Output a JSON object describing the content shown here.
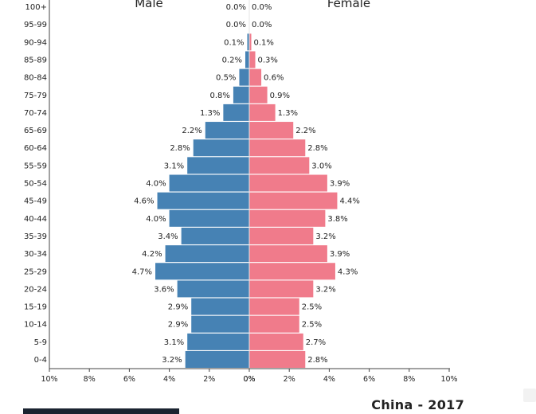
{
  "chart_data": {
    "type": "bar",
    "title": "China - 2017",
    "left_label": "Male",
    "right_label": "Female",
    "categories": [
      "0-4",
      "5-9",
      "10-14",
      "15-19",
      "20-24",
      "25-29",
      "30-34",
      "35-39",
      "40-44",
      "45-49",
      "50-54",
      "55-59",
      "60-64",
      "65-69",
      "70-74",
      "75-79",
      "80-84",
      "85-89",
      "90-94",
      "95-99",
      "100+"
    ],
    "series": [
      {
        "name": "Male",
        "color": "#4682b4",
        "values": [
          3.2,
          3.1,
          2.9,
          2.9,
          3.6,
          4.7,
          4.2,
          3.4,
          4.0,
          4.6,
          4.0,
          3.1,
          2.8,
          2.2,
          1.3,
          0.8,
          0.5,
          0.2,
          0.1,
          0.0,
          0.0
        ],
        "labels": [
          "3.2%",
          "3.1%",
          "2.9%",
          "2.9%",
          "3.6%",
          "4.7%",
          "4.2%",
          "3.4%",
          "4.0%",
          "4.6%",
          "4.0%",
          "3.1%",
          "2.8%",
          "2.2%",
          "1.3%",
          "0.8%",
          "0.5%",
          "0.2%",
          "0.1%",
          "0.0%",
          "0.0%"
        ]
      },
      {
        "name": "Female",
        "color": "#f07b8b",
        "values": [
          2.8,
          2.7,
          2.5,
          2.5,
          3.2,
          4.3,
          3.9,
          3.2,
          3.8,
          4.4,
          3.9,
          3.0,
          2.8,
          2.2,
          1.3,
          0.9,
          0.6,
          0.3,
          0.1,
          0.0,
          0.0
        ],
        "labels": [
          "2.8%",
          "2.7%",
          "2.5%",
          "2.5%",
          "3.2%",
          "4.3%",
          "3.9%",
          "3.2%",
          "3.8%",
          "4.4%",
          "3.9%",
          "3.0%",
          "2.8%",
          "2.2%",
          "1.3%",
          "0.9%",
          "0.6%",
          "0.3%",
          "0.1%",
          "0.0%",
          "0.0%"
        ]
      }
    ],
    "xlim": [
      -10,
      10
    ],
    "x_ticks_left": [
      "10%",
      "8%",
      "6%",
      "4%",
      "2%",
      "0%"
    ],
    "x_ticks_right": [
      "0%",
      "2%",
      "4%",
      "6%",
      "8%",
      "10%"
    ],
    "grid": false,
    "legend": "none"
  }
}
